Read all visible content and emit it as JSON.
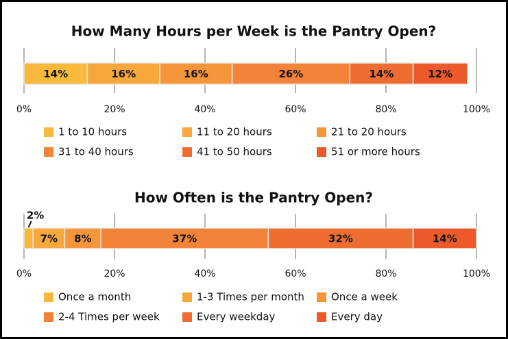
{
  "chart_data": [
    {
      "type": "stacked_bar",
      "title": "How Many Hours per Week is the Pantry Open?",
      "xlim": [
        0,
        100
      ],
      "xticks": [
        {
          "value": 0,
          "label": "0%"
        },
        {
          "value": 20,
          "label": "20%"
        },
        {
          "value": 40,
          "label": "40%"
        },
        {
          "value": 60,
          "label": "60%"
        },
        {
          "value": 80,
          "label": "80%"
        },
        {
          "value": 100,
          "label": "100%"
        }
      ],
      "series": [
        {
          "name": "1 to 10 hours",
          "color": "#f9b93d",
          "values": [
            14
          ],
          "value_labels": [
            "14%"
          ]
        },
        {
          "name": "11 to 20 hours",
          "color": "#f7a83c",
          "values": [
            16
          ],
          "value_labels": [
            "16%"
          ]
        },
        {
          "name": "21 to 20 hours",
          "color": "#f5963a",
          "values": [
            16
          ],
          "value_labels": [
            "16%"
          ]
        },
        {
          "name": "31 to 40 hours",
          "color": "#f38338",
          "values": [
            26
          ],
          "value_labels": [
            "26%"
          ]
        },
        {
          "name": "41 to 50 hours",
          "color": "#f06d32",
          "values": [
            14
          ],
          "value_labels": [
            "14%"
          ]
        },
        {
          "name": "51 or more hours",
          "color": "#ec5a2b",
          "values": [
            12
          ],
          "value_labels": [
            "12%"
          ]
        }
      ]
    },
    {
      "type": "stacked_bar",
      "title": "How Often is the Pantry Open?",
      "xlim": [
        0,
        100
      ],
      "xticks": [
        {
          "value": 0,
          "label": "0%"
        },
        {
          "value": 20,
          "label": "20%"
        },
        {
          "value": 40,
          "label": "40%"
        },
        {
          "value": 60,
          "label": "60%"
        },
        {
          "value": 80,
          "label": "80%"
        },
        {
          "value": 100,
          "label": "100%"
        }
      ],
      "series": [
        {
          "name": "Once a month",
          "color": "#f9b93d",
          "values": [
            2
          ],
          "value_labels": [
            "2%"
          ]
        },
        {
          "name": "1-3 Times per month",
          "color": "#f7a83c",
          "values": [
            7
          ],
          "value_labels": [
            "7%"
          ]
        },
        {
          "name": "Once a week",
          "color": "#f5963a",
          "values": [
            8
          ],
          "value_labels": [
            "8%"
          ]
        },
        {
          "name": "2-4 Times per week",
          "color": "#f38338",
          "values": [
            37
          ],
          "value_labels": [
            "37%"
          ]
        },
        {
          "name": "Every weekday",
          "color": "#f06d32",
          "values": [
            32
          ],
          "value_labels": [
            "32%"
          ]
        },
        {
          "name": "Every day",
          "color": "#ec5a2b",
          "values": [
            14
          ],
          "value_labels": [
            "14%"
          ]
        }
      ]
    }
  ]
}
